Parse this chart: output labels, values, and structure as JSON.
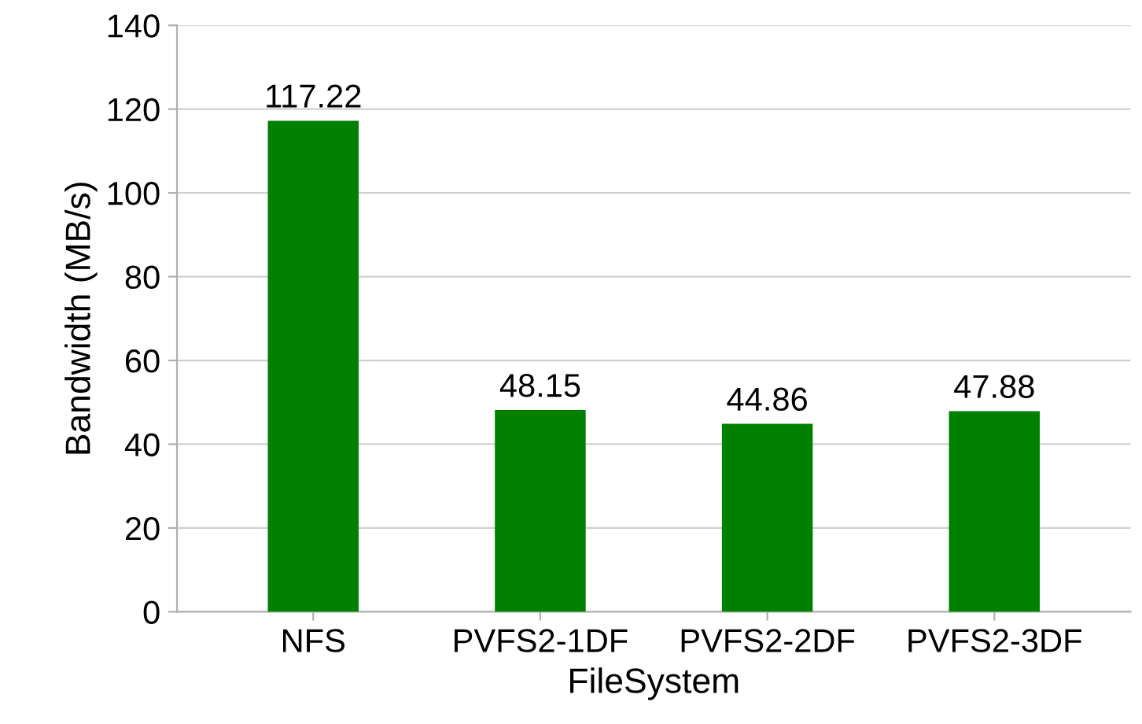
{
  "chart_data": {
    "type": "bar",
    "xlabel": "FileSystem",
    "ylabel": "Bandwidth (MB/s)",
    "categories": [
      "NFS",
      "PVFS2-1DF",
      "PVFS2-2DF",
      "PVFS2-3DF"
    ],
    "values": [
      117.22,
      48.15,
      44.86,
      47.88
    ],
    "color": "#008000",
    "ylim": [
      0,
      140
    ],
    "yticks": [
      0,
      20,
      40,
      60,
      80,
      100,
      120,
      140
    ],
    "grid": "y",
    "data_labels": true
  }
}
